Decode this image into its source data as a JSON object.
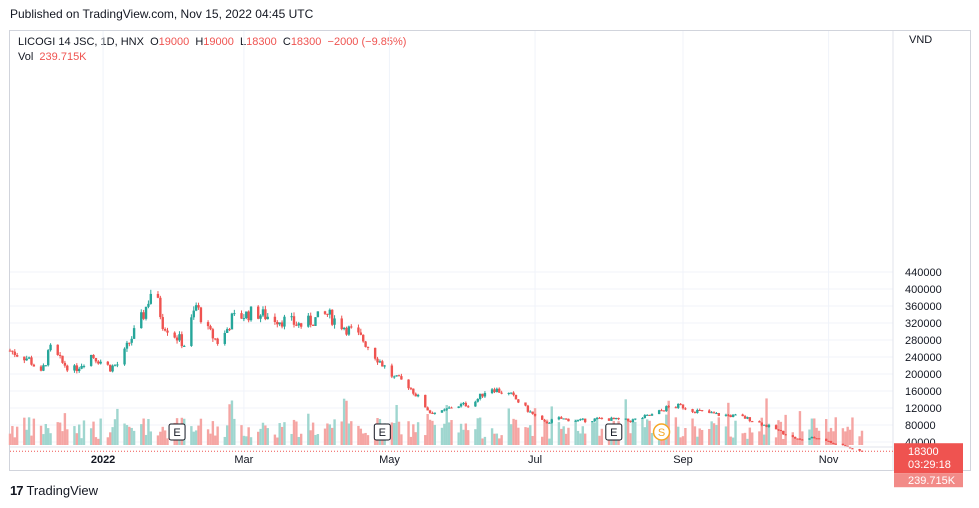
{
  "header": {
    "published": "Published on TradingView.com, Nov 15, 2022 04:45 UTC"
  },
  "legend": {
    "symbol": "LICOGI 14 JSC, 1D, HNX",
    "o_label": "O",
    "o": "19000",
    "h_label": "H",
    "h": "19000",
    "l_label": "L",
    "l": "18300",
    "c_label": "C",
    "c": "18300",
    "change": "−2000 (−9.85%)",
    "vol_label": "Vol",
    "vol": "239.715K"
  },
  "currency": "VND",
  "footer": {
    "logo_mark": "17",
    "brand": "TradingView"
  },
  "colors": {
    "up": "#26a69a",
    "down": "#ef5350",
    "volume_up": "#9fd6cf",
    "volume_down": "#f5a5a3",
    "grid": "#f0f3fa",
    "dividend": "#f5a623"
  },
  "chart_data": {
    "type": "candlestick",
    "y_axis": {
      "min": 0,
      "max": 440000,
      "ticks": [
        40000,
        80000,
        120000,
        160000,
        200000,
        240000,
        280000,
        320000,
        360000,
        400000,
        440000
      ],
      "tick_labels": [
        "40000",
        "80000",
        "120000",
        "160000",
        "200000",
        "240000",
        "280000",
        "320000",
        "360000",
        "400000",
        "440000"
      ]
    },
    "x_axis": {
      "labels": [
        "2022",
        "Mar",
        "May",
        "Jul",
        "Sep",
        "Nov"
      ],
      "label_dates": [
        "2022-01-01",
        "2022-03-01",
        "2022-05-01",
        "2022-07-01",
        "2022-09-01",
        "2022-11-01"
      ],
      "start": "2021-11-23",
      "end": "2022-11-15"
    },
    "price_series": [
      {
        "date": "2021-11-23",
        "close": 255000
      },
      {
        "date": "2021-12-01",
        "close": 235000
      },
      {
        "date": "2021-12-06",
        "close": 200000
      },
      {
        "date": "2021-12-10",
        "close": 260000
      },
      {
        "date": "2021-12-15",
        "close": 225000
      },
      {
        "date": "2021-12-20",
        "close": 210000
      },
      {
        "date": "2021-12-27",
        "close": 245000
      },
      {
        "date": "2022-01-04",
        "close": 215000
      },
      {
        "date": "2022-01-08",
        "close": 225000
      },
      {
        "date": "2022-01-12",
        "close": 275000
      },
      {
        "date": "2022-01-18",
        "close": 340000
      },
      {
        "date": "2022-01-22",
        "close": 410000
      },
      {
        "date": "2022-01-26",
        "close": 320000
      },
      {
        "date": "2022-02-04",
        "close": 270000
      },
      {
        "date": "2022-02-09",
        "close": 360000
      },
      {
        "date": "2022-02-14",
        "close": 300000
      },
      {
        "date": "2022-02-19",
        "close": 270000
      },
      {
        "date": "2022-02-24",
        "close": 330000
      },
      {
        "date": "2022-03-05",
        "close": 345000
      },
      {
        "date": "2022-03-15",
        "close": 330000
      },
      {
        "date": "2022-03-25",
        "close": 315000
      },
      {
        "date": "2022-04-05",
        "close": 340000
      },
      {
        "date": "2022-04-10",
        "close": 320000
      },
      {
        "date": "2022-04-15",
        "close": 300000
      },
      {
        "date": "2022-04-20",
        "close": 280000
      },
      {
        "date": "2022-04-27",
        "close": 230000
      },
      {
        "date": "2022-05-03",
        "close": 190000
      },
      {
        "date": "2022-05-08",
        "close": 180000
      },
      {
        "date": "2022-05-13",
        "close": 145000
      },
      {
        "date": "2022-05-18",
        "close": 110000
      },
      {
        "date": "2022-05-23",
        "close": 110000
      },
      {
        "date": "2022-05-28",
        "close": 125000
      },
      {
        "date": "2022-06-05",
        "close": 130000
      },
      {
        "date": "2022-06-12",
        "close": 170000
      },
      {
        "date": "2022-06-16",
        "close": 160000
      },
      {
        "date": "2022-06-21",
        "close": 150000
      },
      {
        "date": "2022-06-27",
        "close": 120000
      },
      {
        "date": "2022-07-01",
        "close": 100000
      },
      {
        "date": "2022-07-05",
        "close": 85000
      },
      {
        "date": "2022-07-11",
        "close": 95000
      },
      {
        "date": "2022-07-20",
        "close": 90000
      },
      {
        "date": "2022-07-29",
        "close": 95000
      },
      {
        "date": "2022-08-10",
        "close": 90000
      },
      {
        "date": "2022-08-20",
        "close": 105000
      },
      {
        "date": "2022-08-25",
        "close": 120000
      },
      {
        "date": "2022-08-31",
        "close": 125000
      },
      {
        "date": "2022-09-05",
        "close": 115000
      },
      {
        "date": "2022-09-15",
        "close": 105000
      },
      {
        "date": "2022-09-25",
        "close": 100000
      },
      {
        "date": "2022-10-01",
        "close": 90000
      },
      {
        "date": "2022-10-05",
        "close": 80000
      },
      {
        "date": "2022-10-10",
        "close": 70000
      },
      {
        "date": "2022-10-15",
        "close": 55000
      },
      {
        "date": "2022-10-20",
        "close": 45000
      },
      {
        "date": "2022-10-25",
        "close": 50000
      },
      {
        "date": "2022-10-29",
        "close": 48000
      },
      {
        "date": "2022-11-03",
        "close": 37000
      },
      {
        "date": "2022-11-08",
        "close": 32000
      },
      {
        "date": "2022-11-11",
        "close": 23000
      },
      {
        "date": "2022-11-15",
        "close": 18300
      }
    ],
    "last_price": 18300,
    "price_label": "18300",
    "countdown": "03:29:18",
    "last_volume": "239.715K",
    "events": [
      {
        "date": "2022-02-01",
        "type": "earnings",
        "label": "E"
      },
      {
        "date": "2022-04-28",
        "type": "earnings",
        "label": "E"
      },
      {
        "date": "2022-08-03",
        "type": "earnings",
        "label": "E"
      },
      {
        "date": "2022-08-23",
        "type": "dividend",
        "label": "S"
      }
    ]
  }
}
